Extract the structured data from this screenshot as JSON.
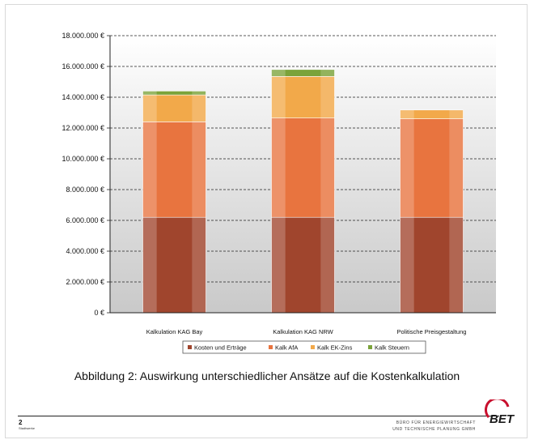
{
  "chart_data": {
    "type": "bar",
    "stacked": true,
    "categories": [
      "Kalkulation KAG Bay",
      "Kalkulation KAG NRW",
      "Politische Preisgestaltung"
    ],
    "series": [
      {
        "name": "Kosten und Erträge",
        "values": [
          6200000,
          6200000,
          6200000
        ],
        "color": "#a0452d"
      },
      {
        "name": "Kalk AfA",
        "values": [
          6200000,
          6450000,
          6400000
        ],
        "color": "#e8743f"
      },
      {
        "name": "Kalk EK-Zins",
        "values": [
          1750000,
          2700000,
          570000
        ],
        "color": "#f2a94a"
      },
      {
        "name": "Kalk Steuern",
        "values": [
          250000,
          450000,
          0
        ],
        "color": "#7ba33a"
      }
    ],
    "yticks": [
      "0 €",
      "2.000.000 €",
      "4.000.000 €",
      "6.000.000 €",
      "8.000.000 €",
      "10.000.000 €",
      "12.000.000 €",
      "14.000.000 €",
      "16.000.000 €",
      "18.000.000 €"
    ],
    "ylim": [
      0,
      18000000
    ],
    "grid": true,
    "legend": "bottom"
  },
  "caption": "Abbildung 2: Auswirkung unterschiedlicher Ansätze auf die Kostenkalkulation",
  "footer": {
    "page_number": "2",
    "page_sub": "Stadtwerke",
    "company_line1": "BÜRO FÜR ENERGIEWIRTSCHAFT",
    "company_line2": "UND TECHNISCHE PLANUNG GMBH",
    "logo_text": "BET"
  }
}
